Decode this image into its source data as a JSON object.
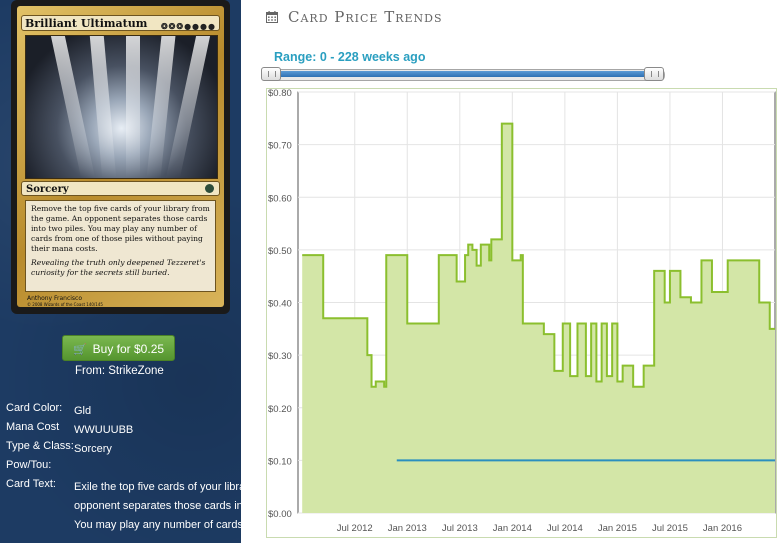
{
  "card": {
    "name": "Brilliant Ultimatum",
    "mana_symbols": "❂❂❂●●●●",
    "type_line": "Sorcery",
    "rules_text": "Remove the top five cards of your library from the game. An opponent separates those cards into two piles. You may play any number of cards from one of those piles without paying their mana costs.",
    "flavor_text": "Revealing the truth only deepened Tezzeret's curiosity for the secrets still buried.",
    "artist": "Anthony Francisco",
    "copyright": "© 2008 Wizards of the Coast 140/145"
  },
  "buy": {
    "button_label": "Buy for $0.25",
    "cart_icon": "cart-icon",
    "from_text": "From: StrikeZone",
    "color": "#5fa23a"
  },
  "details": {
    "card_color_label": "Card Color:",
    "card_color_value": "Gld",
    "mana_cost_label": "Mana Cost",
    "mana_cost_value": "WWUUUBB",
    "type_class_label": "Type & Class:",
    "type_class_value": "Sorcery",
    "pow_tou_label": "Pow/Tou:",
    "pow_tou_value": "",
    "card_text_label": "Card Text:",
    "card_text_value": "Exile the top five cards of your library. An opponent separates those cards into two piles. You may play any number of cards"
  },
  "panel": {
    "title": "Card Price Trends",
    "range_label": "Range: 0 - 228 weeks ago",
    "accent": "#2a9fc0"
  },
  "chart_data": {
    "type": "line",
    "ylim": [
      0,
      0.8
    ],
    "y_ticks": [
      "$0.00",
      "$0.10",
      "$0.20",
      "$0.30",
      "$0.40",
      "$0.50",
      "$0.60",
      "$0.70",
      "$0.80"
    ],
    "x_ticks": [
      "Jul 2012",
      "Jan 2013",
      "Jul 2013",
      "Jan 2014",
      "Jul 2014",
      "Jan 2015",
      "Jul 2015",
      "Jan 2016"
    ],
    "grid": true,
    "series": [
      {
        "color": "#8bbf2e",
        "fill": "#d3e6a7",
        "x": [
          2012.0,
          2012.2,
          2012.5,
          2012.62,
          2012.66,
          2012.7,
          2012.78,
          2012.8,
          2012.95,
          2013.0,
          2013.2,
          2013.3,
          2013.45,
          2013.47,
          2013.55,
          2013.58,
          2013.62,
          2013.66,
          2013.7,
          2013.78,
          2013.8,
          2013.9,
          2014.0,
          2014.08,
          2014.1,
          2014.25,
          2014.3,
          2014.4,
          2014.48,
          2014.55,
          2014.62,
          2014.7,
          2014.75,
          2014.8,
          2014.85,
          2014.9,
          2014.95,
          2015.0,
          2015.05,
          2015.1,
          2015.15,
          2015.25,
          2015.35,
          2015.45,
          2015.5,
          2015.6,
          2015.7,
          2015.8,
          2015.9,
          2016.0,
          2016.05,
          2016.15,
          2016.3,
          2016.35,
          2016.45
        ],
        "y": [
          0.49,
          0.37,
          0.37,
          0.3,
          0.24,
          0.25,
          0.24,
          0.49,
          0.49,
          0.36,
          0.36,
          0.49,
          0.49,
          0.44,
          0.49,
          0.51,
          0.5,
          0.47,
          0.51,
          0.48,
          0.52,
          0.74,
          0.48,
          0.49,
          0.36,
          0.36,
          0.34,
          0.27,
          0.36,
          0.26,
          0.36,
          0.26,
          0.36,
          0.25,
          0.36,
          0.26,
          0.36,
          0.25,
          0.28,
          0.28,
          0.24,
          0.28,
          0.46,
          0.4,
          0.46,
          0.41,
          0.4,
          0.48,
          0.42,
          0.42,
          0.48,
          0.48,
          0.48,
          0.4,
          0.35
        ]
      },
      {
        "color": "#2a8fbf",
        "x": [
          2012.9,
          2016.5
        ],
        "y": [
          0.1,
          0.1
        ]
      }
    ]
  }
}
